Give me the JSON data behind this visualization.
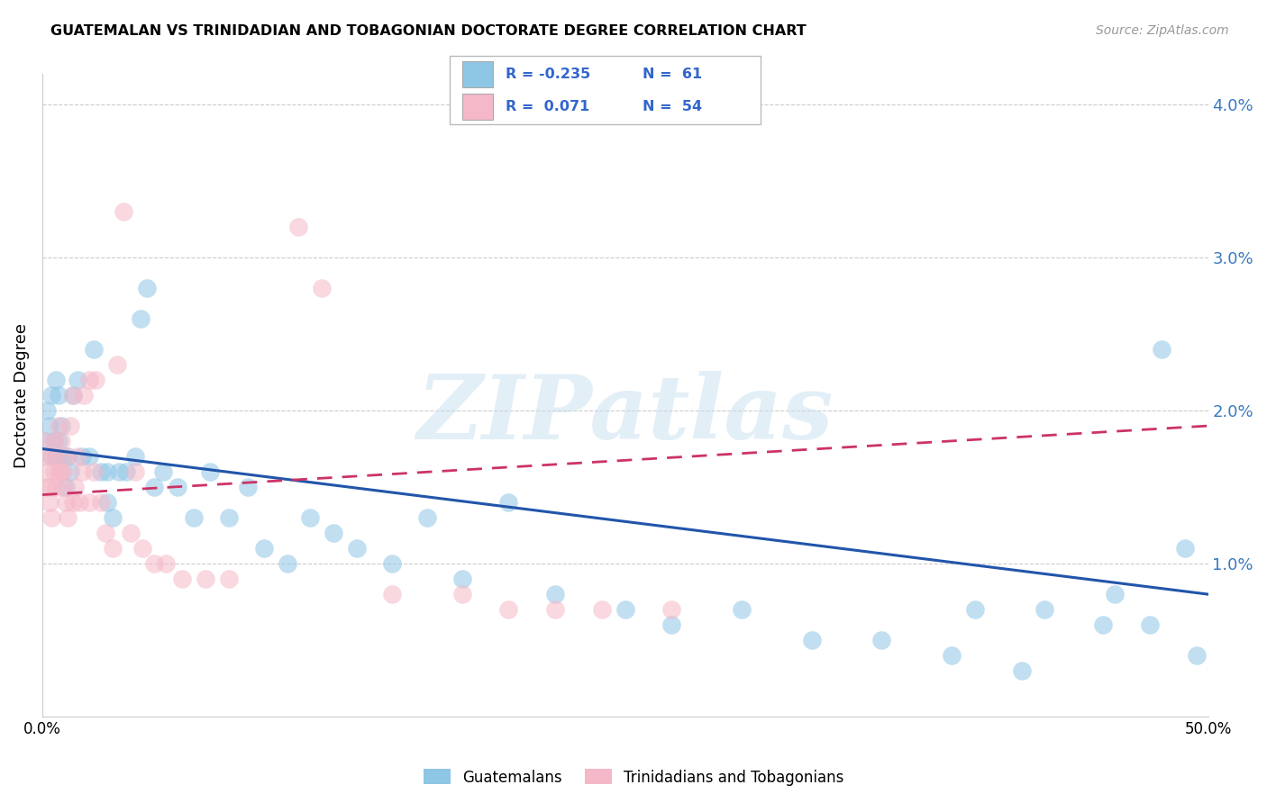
{
  "title": "GUATEMALAN VS TRINIDADIAN AND TOBAGONIAN DOCTORATE DEGREE CORRELATION CHART",
  "source": "Source: ZipAtlas.com",
  "ylabel": "Doctorate Degree",
  "ylim": [
    0.0,
    0.042
  ],
  "xlim": [
    0.0,
    0.5
  ],
  "ytick_vals": [
    0.0,
    0.01,
    0.02,
    0.03,
    0.04
  ],
  "ytick_labels": [
    "",
    "1.0%",
    "2.0%",
    "3.0%",
    "4.0%"
  ],
  "watermark": "ZIPatlas",
  "blue_color": "#8ec6e6",
  "pink_color": "#f5b8c8",
  "line_blue_color": "#2255aa",
  "line_pink_color": "#cc3366",
  "blue_scatter_x": [
    0.001,
    0.002,
    0.003,
    0.004,
    0.004,
    0.005,
    0.006,
    0.006,
    0.007,
    0.007,
    0.008,
    0.009,
    0.01,
    0.011,
    0.012,
    0.013,
    0.015,
    0.017,
    0.02,
    0.022,
    0.025,
    0.028,
    0.028,
    0.03,
    0.033,
    0.036,
    0.04,
    0.042,
    0.045,
    0.048,
    0.052,
    0.058,
    0.065,
    0.072,
    0.08,
    0.088,
    0.095,
    0.105,
    0.115,
    0.125,
    0.135,
    0.15,
    0.165,
    0.18,
    0.2,
    0.22,
    0.25,
    0.27,
    0.3,
    0.33,
    0.36,
    0.39,
    0.42,
    0.455,
    0.475,
    0.495,
    0.4,
    0.43,
    0.46,
    0.48,
    0.49
  ],
  "blue_scatter_y": [
    0.018,
    0.02,
    0.019,
    0.017,
    0.021,
    0.018,
    0.022,
    0.017,
    0.021,
    0.018,
    0.019,
    0.017,
    0.015,
    0.017,
    0.016,
    0.021,
    0.022,
    0.017,
    0.017,
    0.024,
    0.016,
    0.014,
    0.016,
    0.013,
    0.016,
    0.016,
    0.017,
    0.026,
    0.028,
    0.015,
    0.016,
    0.015,
    0.013,
    0.016,
    0.013,
    0.015,
    0.011,
    0.01,
    0.013,
    0.012,
    0.011,
    0.01,
    0.013,
    0.009,
    0.014,
    0.008,
    0.007,
    0.006,
    0.007,
    0.005,
    0.005,
    0.004,
    0.003,
    0.006,
    0.006,
    0.004,
    0.007,
    0.007,
    0.008,
    0.024,
    0.011
  ],
  "pink_scatter_x": [
    0.001,
    0.001,
    0.002,
    0.002,
    0.003,
    0.003,
    0.004,
    0.004,
    0.005,
    0.005,
    0.006,
    0.006,
    0.007,
    0.007,
    0.008,
    0.008,
    0.009,
    0.009,
    0.01,
    0.01,
    0.011,
    0.012,
    0.013,
    0.013,
    0.014,
    0.015,
    0.016,
    0.017,
    0.018,
    0.02,
    0.02,
    0.022,
    0.023,
    0.025,
    0.027,
    0.03,
    0.032,
    0.035,
    0.038,
    0.04,
    0.043,
    0.048,
    0.053,
    0.06,
    0.07,
    0.08,
    0.11,
    0.12,
    0.15,
    0.18,
    0.2,
    0.22,
    0.24,
    0.27
  ],
  "pink_scatter_y": [
    0.018,
    0.017,
    0.016,
    0.015,
    0.015,
    0.014,
    0.013,
    0.017,
    0.016,
    0.018,
    0.017,
    0.015,
    0.016,
    0.019,
    0.018,
    0.016,
    0.016,
    0.015,
    0.017,
    0.014,
    0.013,
    0.019,
    0.014,
    0.021,
    0.015,
    0.017,
    0.014,
    0.016,
    0.021,
    0.014,
    0.022,
    0.016,
    0.022,
    0.014,
    0.012,
    0.011,
    0.023,
    0.033,
    0.012,
    0.016,
    0.011,
    0.01,
    0.01,
    0.009,
    0.009,
    0.009,
    0.032,
    0.028,
    0.008,
    0.008,
    0.007,
    0.007,
    0.007,
    0.007
  ],
  "blue_line_x0": 0.0,
  "blue_line_y0": 0.0175,
  "blue_line_x1": 0.5,
  "blue_line_y1": 0.008,
  "pink_line_x0": 0.0,
  "pink_line_y0": 0.0145,
  "pink_line_x1": 0.5,
  "pink_line_y1": 0.019
}
